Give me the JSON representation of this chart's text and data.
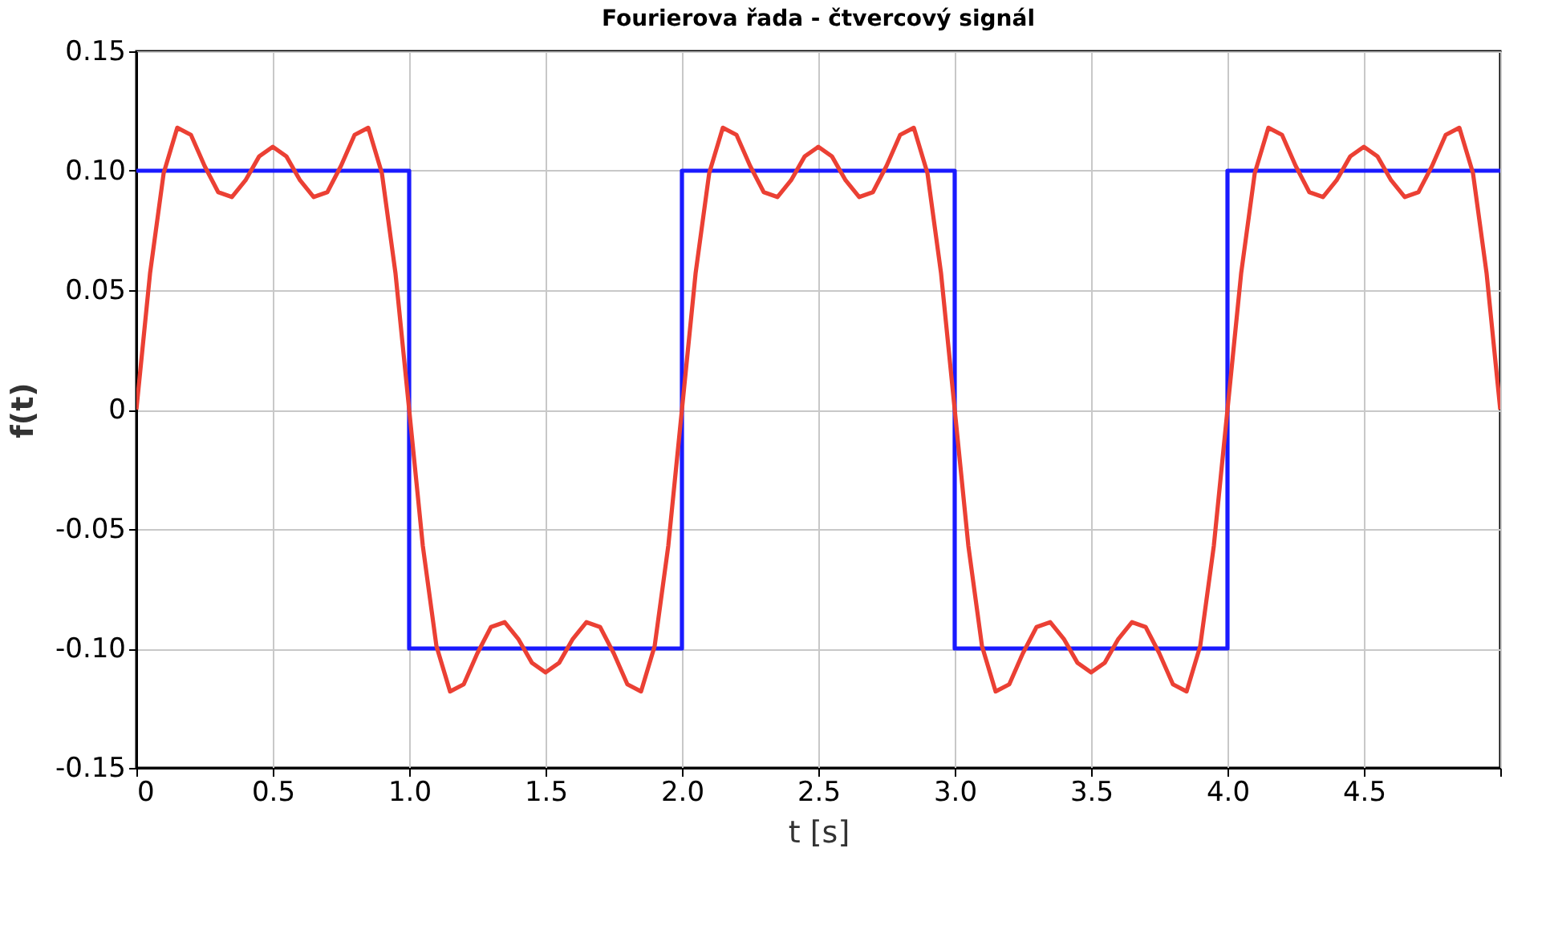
{
  "chart_data": {
    "type": "line",
    "title": "Fourierova řada - čtvercový signál",
    "xlabel": "t [s]",
    "ylabel": "f(t)",
    "xlim": [
      0,
      5
    ],
    "ylim": [
      -0.15,
      0.15
    ],
    "xticks": [
      0,
      0.5,
      {
        "value": 1,
        "label": "1.0"
      },
      1.5,
      {
        "value": 2,
        "label": "2.0"
      },
      2.5,
      {
        "value": 3,
        "label": "3.0"
      },
      3.5,
      {
        "value": 4,
        "label": "4.0"
      },
      4.5,
      {
        "value": 5,
        "label": null
      }
    ],
    "yticks": [
      -0.15,
      {
        "value": -0.1,
        "label": "-0.10"
      },
      -0.05,
      0,
      0.05,
      {
        "value": 0.1,
        "label": "0.10"
      },
      0.15
    ],
    "grid": true,
    "line_style": "solid",
    "marker": "none",
    "series": [
      {
        "type": "step",
        "color": "#1a1aff",
        "x": [
          0,
          1,
          2,
          3,
          4,
          5
        ],
        "values": [
          0.1,
          -0.1,
          0.1,
          -0.1,
          0.1,
          0.1
        ]
      },
      {
        "type": "line",
        "color": "#eb4034",
        "x": [
          0,
          0.05,
          0.1,
          0.15,
          0.2,
          0.25,
          0.3,
          0.35,
          0.4,
          0.45,
          0.5,
          0.55,
          0.6,
          0.65,
          0.7,
          0.75,
          0.8,
          0.85,
          0.9,
          0.95,
          1,
          1.05,
          1.1,
          1.15,
          1.2,
          1.25,
          1.3,
          1.35,
          1.4,
          1.45,
          1.5,
          1.55,
          1.6,
          1.65,
          1.7,
          1.75,
          1.8,
          1.85,
          1.9,
          1.95,
          2,
          2.05,
          2.1,
          2.15,
          2.2,
          2.25,
          2.3,
          2.35,
          2.4,
          2.45,
          2.5,
          2.55,
          2.6,
          2.65,
          2.7,
          2.75,
          2.8,
          2.85,
          2.9,
          2.95,
          3,
          3.05,
          3.1,
          3.15,
          3.2,
          3.25,
          3.3,
          3.35,
          3.4,
          3.45,
          3.5,
          3.55,
          3.6,
          3.65,
          3.7,
          3.75,
          3.8,
          3.85,
          3.9,
          3.95,
          4,
          4.05,
          4.1,
          4.15,
          4.2,
          4.25,
          4.3,
          4.35,
          4.4,
          4.45,
          4.5,
          4.55,
          4.6,
          4.65,
          4.7,
          4.75,
          4.8,
          4.85,
          4.9,
          4.95,
          5
        ],
        "values": [
          0,
          0.057,
          0.099,
          0.118,
          0.115,
          0.102,
          0.091,
          0.089,
          0.096,
          0.106,
          0.11,
          0.106,
          0.096,
          0.089,
          0.091,
          0.102,
          0.115,
          0.118,
          0.099,
          0.057,
          0,
          -0.057,
          -0.099,
          -0.118,
          -0.115,
          -0.102,
          -0.091,
          -0.089,
          -0.096,
          -0.106,
          -0.11,
          -0.106,
          -0.096,
          -0.089,
          -0.091,
          -0.102,
          -0.115,
          -0.118,
          -0.099,
          -0.057,
          0,
          0.057,
          0.099,
          0.118,
          0.115,
          0.102,
          0.091,
          0.089,
          0.096,
          0.106,
          0.11,
          0.106,
          0.096,
          0.089,
          0.091,
          0.102,
          0.115,
          0.118,
          0.099,
          0.057,
          0,
          -0.057,
          -0.099,
          -0.118,
          -0.115,
          -0.102,
          -0.091,
          -0.089,
          -0.096,
          -0.106,
          -0.11,
          -0.106,
          -0.096,
          -0.089,
          -0.091,
          -0.102,
          -0.115,
          -0.118,
          -0.099,
          -0.057,
          0,
          0.057,
          0.099,
          0.118,
          0.115,
          0.102,
          0.091,
          0.089,
          0.096,
          0.106,
          0.11,
          0.106,
          0.096,
          0.089,
          0.091,
          0.102,
          0.115,
          0.118,
          0.099,
          0.057,
          0
        ]
      }
    ]
  }
}
